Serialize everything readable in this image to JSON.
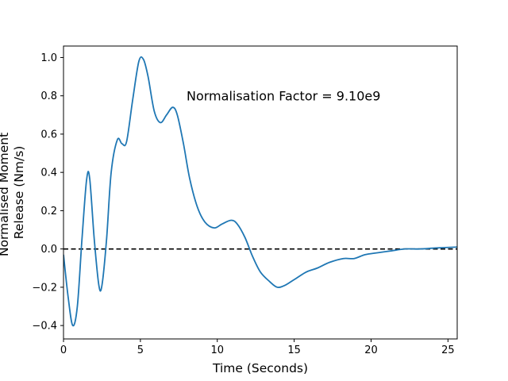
{
  "chart_data": {
    "type": "line",
    "title": "",
    "xlabel": "Time (Seconds)",
    "ylabel_lines": [
      "Normalised Moment",
      "Release (Nm/s)"
    ],
    "xlim": [
      0,
      25.6
    ],
    "ylim": [
      -0.47,
      1.06
    ],
    "xticks": [
      0,
      5,
      10,
      15,
      20,
      25
    ],
    "yticks": [
      -0.4,
      -0.2,
      0.0,
      0.2,
      0.4,
      0.6,
      0.8,
      1.0
    ],
    "xtick_labels": [
      "0",
      "5",
      "10",
      "15",
      "20",
      "25"
    ],
    "ytick_labels": [
      "−0.4",
      "−0.2",
      "0.0",
      "0.2",
      "0.4",
      "0.6",
      "0.8",
      "1.0"
    ],
    "grid": false,
    "annotation": "Normalisation Factor = 9.10e9",
    "reference_line": {
      "y": 0.0,
      "style": "dashed",
      "color": "#000000"
    },
    "series": [
      {
        "color": "#1f77b4",
        "x": [
          0,
          0.3,
          0.6,
          0.9,
          1.2,
          1.5,
          1.7,
          2.0,
          2.3,
          2.5,
          2.8,
          3.1,
          3.5,
          3.8,
          4.1,
          4.5,
          4.9,
          5.2,
          5.5,
          5.9,
          6.3,
          6.7,
          7.1,
          7.4,
          7.8,
          8.2,
          8.7,
          9.2,
          9.8,
          10.3,
          10.9,
          11.3,
          11.8,
          12.3,
          12.8,
          13.4,
          13.9,
          14.4,
          15.0,
          15.8,
          16.5,
          17.3,
          18.2,
          18.9,
          19.6,
          20.4,
          21.3,
          22.2,
          23.2,
          24.2,
          25.6
        ],
        "values": [
          -0.03,
          -0.25,
          -0.4,
          -0.3,
          0.05,
          0.36,
          0.37,
          0.05,
          -0.19,
          -0.19,
          0.05,
          0.4,
          0.57,
          0.55,
          0.56,
          0.78,
          0.98,
          0.99,
          0.9,
          0.72,
          0.66,
          0.7,
          0.74,
          0.7,
          0.55,
          0.37,
          0.22,
          0.14,
          0.11,
          0.13,
          0.15,
          0.13,
          0.06,
          -0.04,
          -0.12,
          -0.17,
          -0.2,
          -0.19,
          -0.16,
          -0.12,
          -0.1,
          -0.07,
          -0.05,
          -0.05,
          -0.03,
          -0.02,
          -0.01,
          0.0,
          0.0,
          0.005,
          0.01
        ]
      }
    ],
    "colors": {
      "line": "#1f77b4",
      "axes": "#000000",
      "background": "#ffffff"
    }
  }
}
